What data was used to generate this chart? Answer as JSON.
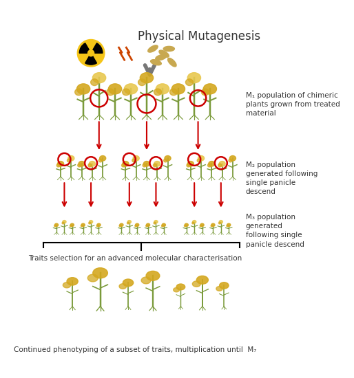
{
  "title": "Physical Mutagenesis",
  "bg_color": "#ffffff",
  "text_color": "#333333",
  "red_color": "#cc0000",
  "arrow_color": "#555555",
  "label_m1": "M₁ population of chimeric\nplants grown from treated\nmaterial",
  "label_m2": "M₂ population\ngenerated following\nsingle panicle\ndescend",
  "label_m3": "M₃ population\ngenerated\nfollowing single\npanicle descend",
  "label_traits": "Traits selection for an advanced molecular characterisation",
  "label_bottom": "Continued phenotyping of a subset of traits, multiplication until  M₇",
  "radiation_color": "#f5c518",
  "lightning_color": "#cc4400",
  "seed_color": "#c8a850",
  "plant_green": "#7a9a3a",
  "plant_gold": "#d4a820",
  "plant_light": "#e8c850"
}
